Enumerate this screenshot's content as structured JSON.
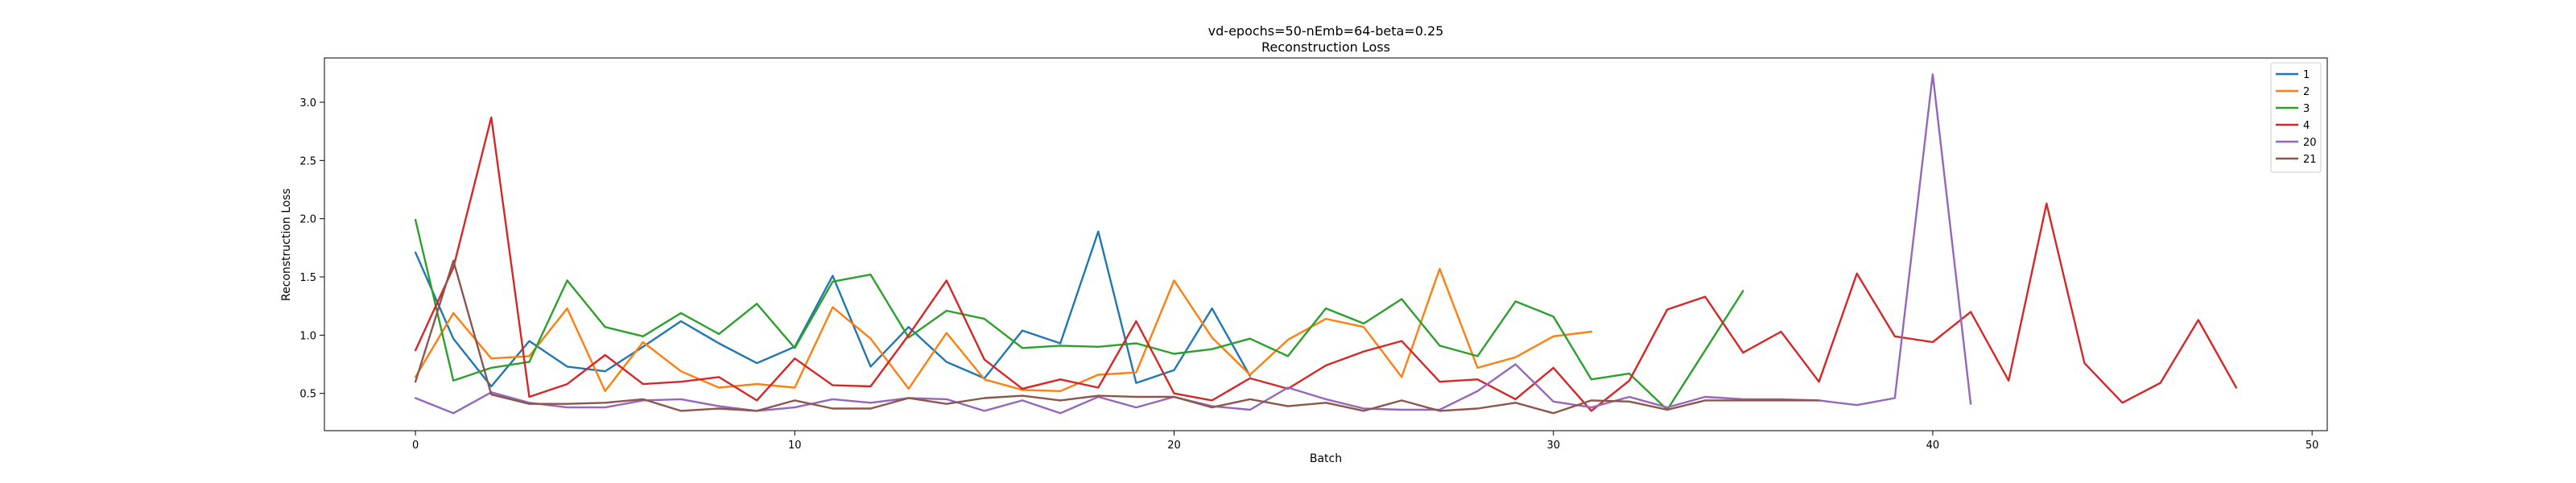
{
  "chart_data": {
    "type": "line",
    "title": "vd-epochs=50-nEmb=64-beta=0.25",
    "subtitle": "Reconstruction Loss",
    "xlabel": "Batch",
    "ylabel": "Reconstruction Loss",
    "xlim": [
      -2.4,
      50.4
    ],
    "ylim": [
      0.18,
      3.38
    ],
    "xticks": [
      0,
      10,
      20,
      30,
      40,
      50
    ],
    "yticks": [
      0.5,
      1.0,
      1.5,
      2.0,
      2.5,
      3.0
    ],
    "xtick_labels": [
      "0",
      "10",
      "20",
      "30",
      "40",
      "50"
    ],
    "ytick_labels": [
      "0.5",
      "1.0",
      "1.5",
      "2.0",
      "2.5",
      "3.0"
    ],
    "grid": false,
    "legend_position": "top-right",
    "series": [
      {
        "name": "1",
        "color": "#1f77b4",
        "x": [
          0,
          1,
          2,
          3,
          4,
          5,
          6,
          7,
          8,
          9,
          10,
          11,
          12,
          13,
          14,
          15,
          16,
          17,
          18,
          19,
          20,
          21,
          22
        ],
        "values": [
          1.71,
          0.97,
          0.56,
          0.95,
          0.73,
          0.69,
          0.9,
          1.12,
          0.93,
          0.76,
          0.9,
          1.51,
          0.73,
          1.07,
          0.77,
          0.63,
          1.04,
          0.93,
          1.89,
          0.59,
          0.7,
          1.23,
          0.65
        ]
      },
      {
        "name": "2",
        "color": "#ff7f0e",
        "x": [
          0,
          1,
          2,
          3,
          4,
          5,
          6,
          7,
          8,
          9,
          10,
          11,
          12,
          13,
          14,
          15,
          16,
          17,
          18,
          19,
          20,
          21,
          22,
          23,
          24,
          25,
          26,
          27,
          28,
          29,
          30,
          31
        ],
        "values": [
          0.64,
          1.19,
          0.8,
          0.82,
          1.23,
          0.52,
          0.94,
          0.69,
          0.55,
          0.58,
          0.55,
          1.24,
          0.97,
          0.54,
          1.02,
          0.62,
          0.53,
          0.52,
          0.66,
          0.68,
          1.47,
          0.98,
          0.66,
          0.96,
          1.14,
          1.07,
          0.64,
          1.57,
          0.72,
          0.81,
          0.99,
          1.03
        ]
      },
      {
        "name": "3",
        "color": "#2ca02c",
        "x": [
          0,
          1,
          2,
          3,
          4,
          5,
          6,
          7,
          8,
          9,
          10,
          11,
          12,
          13,
          14,
          15,
          16,
          17,
          18,
          19,
          20,
          21,
          22,
          23,
          24,
          25,
          26,
          27,
          28,
          29,
          30,
          31,
          32,
          33,
          34,
          35
        ],
        "values": [
          1.99,
          0.61,
          0.72,
          0.77,
          1.47,
          1.07,
          0.99,
          1.19,
          1.01,
          1.27,
          0.89,
          1.46,
          1.52,
          0.98,
          1.21,
          1.14,
          0.89,
          0.91,
          0.9,
          0.93,
          0.84,
          0.88,
          0.97,
          0.82,
          1.23,
          1.1,
          1.31,
          0.91,
          0.82,
          1.29,
          1.16,
          0.62,
          0.67,
          0.36,
          0.87,
          1.38
        ]
      },
      {
        "name": "4",
        "color": "#d62728",
        "x": [
          0,
          1,
          2,
          3,
          4,
          5,
          6,
          7,
          8,
          9,
          10,
          11,
          12,
          13,
          14,
          15,
          16,
          17,
          18,
          19,
          20,
          21,
          22,
          23,
          24,
          25,
          26,
          27,
          28,
          29,
          30,
          31,
          32,
          33,
          34,
          35,
          36,
          37,
          38,
          39,
          40,
          41,
          42,
          43,
          44,
          45,
          46,
          47,
          48
        ],
        "values": [
          0.87,
          1.58,
          2.87,
          0.47,
          0.58,
          0.83,
          0.58,
          0.6,
          0.64,
          0.44,
          0.8,
          0.57,
          0.56,
          1.0,
          1.47,
          0.79,
          0.54,
          0.62,
          0.55,
          1.12,
          0.5,
          0.44,
          0.63,
          0.54,
          0.74,
          0.86,
          0.95,
          0.6,
          0.62,
          0.45,
          0.72,
          0.35,
          0.61,
          1.22,
          1.33,
          0.85,
          1.03,
          0.6,
          1.53,
          0.99,
          0.94,
          1.2,
          0.61,
          2.13,
          0.76,
          0.42,
          0.59,
          1.13,
          0.55
        ]
      },
      {
        "name": "20",
        "color": "#9467bd",
        "x": [
          0,
          1,
          2,
          3,
          4,
          5,
          6,
          7,
          8,
          9,
          10,
          11,
          12,
          13,
          14,
          15,
          16,
          17,
          18,
          19,
          20,
          21,
          22,
          23,
          24,
          25,
          26,
          27,
          28,
          29,
          30,
          31,
          32,
          33,
          34,
          35,
          36,
          37,
          38,
          39,
          40,
          41
        ],
        "values": [
          0.46,
          0.33,
          0.51,
          0.42,
          0.38,
          0.38,
          0.44,
          0.45,
          0.39,
          0.35,
          0.38,
          0.45,
          0.42,
          0.46,
          0.45,
          0.35,
          0.44,
          0.33,
          0.47,
          0.38,
          0.47,
          0.39,
          0.36,
          0.55,
          0.45,
          0.37,
          0.36,
          0.36,
          0.52,
          0.75,
          0.43,
          0.38,
          0.47,
          0.38,
          0.47,
          0.45,
          0.45,
          0.44,
          0.4,
          0.46,
          3.24,
          0.41
        ]
      },
      {
        "name": "21",
        "color": "#8c564b",
        "x": [
          0,
          1,
          2,
          3,
          4,
          5,
          6,
          7,
          8,
          9,
          10,
          11,
          12,
          13,
          14,
          15,
          16,
          17,
          18,
          19,
          20,
          21,
          22,
          23,
          24,
          25,
          26,
          27,
          28,
          29,
          30,
          31,
          32,
          33,
          34,
          35,
          36,
          37
        ],
        "values": [
          0.6,
          1.64,
          0.49,
          0.41,
          0.41,
          0.42,
          0.45,
          0.35,
          0.37,
          0.35,
          0.44,
          0.37,
          0.37,
          0.46,
          0.41,
          0.46,
          0.48,
          0.44,
          0.48,
          0.47,
          0.47,
          0.38,
          0.45,
          0.39,
          0.42,
          0.35,
          0.44,
          0.35,
          0.37,
          0.42,
          0.33,
          0.44,
          0.43,
          0.36,
          0.44,
          0.44,
          0.44,
          0.44
        ]
      }
    ]
  }
}
